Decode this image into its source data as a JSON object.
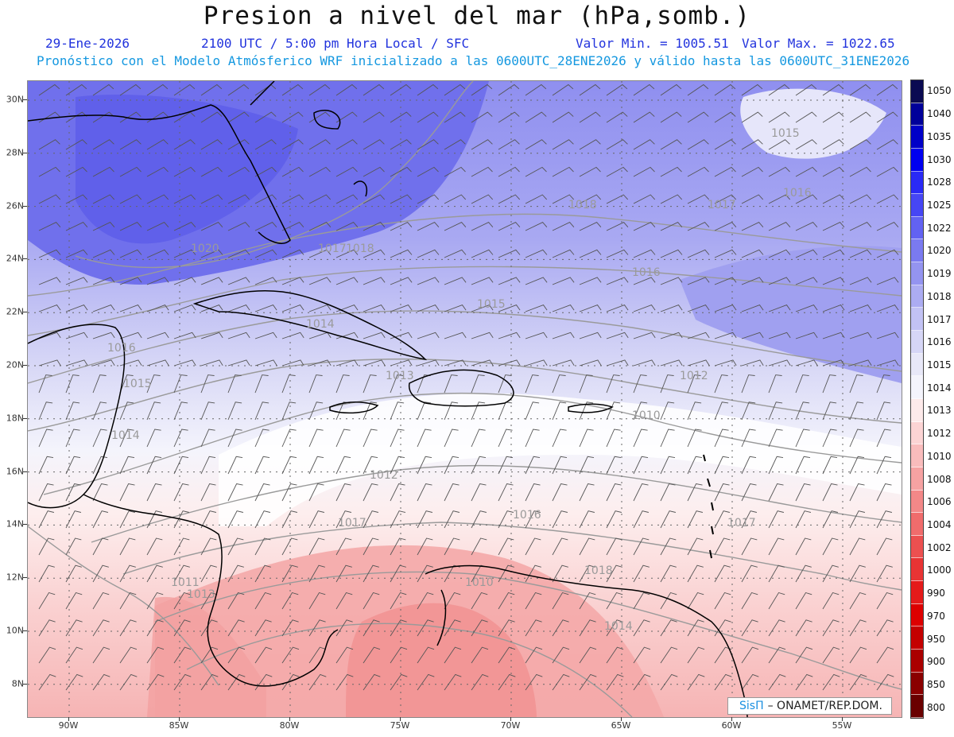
{
  "header": {
    "title": "Presion a nivel del mar (hPa,somb.)",
    "date": "29-Ene-2026",
    "time": "2100 UTC / 5:00 pm Hora Local / SFC",
    "min_value": "Valor Min. = 1005.51",
    "max_value": "Valor Max. = 1022.65",
    "model_line": "Pronóstico con el Modelo Atmósferico WRF inicializado a las 0600UTC_28ENE2026 y válido hasta las  0600UTC_31ENE2026"
  },
  "colors": {
    "title": "#111111",
    "info_blue": "#2233dd",
    "info_cyan": "#1598e0",
    "brand": "#1a8fe0",
    "isobar": "#9a9a9a",
    "coast": "#000000"
  },
  "colorbar": {
    "labels": [
      "1050",
      "1040",
      "1035",
      "1030",
      "1028",
      "1025",
      "1022",
      "1020",
      "1019",
      "1018",
      "1017",
      "1016",
      "1015",
      "1014",
      "1013",
      "1012",
      "1010",
      "1008",
      "1006",
      "1004",
      "1002",
      "1000",
      "990",
      "970",
      "950",
      "900",
      "850",
      "800"
    ],
    "colors": [
      "#0a0a52",
      "#00009a",
      "#0000c8",
      "#0000f0",
      "#2a2af6",
      "#4646f4",
      "#6262f2",
      "#7a7af0",
      "#9494f0",
      "#acacf2",
      "#c2c2f4",
      "#d6d6f6",
      "#e8e8f8",
      "#f4f4fc",
      "#fdeaea",
      "#fcd4d4",
      "#f9bcbc",
      "#f6a2a2",
      "#f38888",
      "#f06c6c",
      "#ec5050",
      "#e83434",
      "#e41a1a",
      "#dd0000",
      "#c40000",
      "#aa0000",
      "#8a0000",
      "#6a0000"
    ]
  },
  "latitude_labels": [
    "30N",
    "28N",
    "26N",
    "24N",
    "22N",
    "20N",
    "18N",
    "16N",
    "14N",
    "12N",
    "10N",
    "8N"
  ],
  "longitude_labels": [
    "90W",
    "85W",
    "80W",
    "75W",
    "70W",
    "65W",
    "60W",
    "55W"
  ],
  "isobar_labels": [
    "1015",
    "1016",
    "1017",
    "1018",
    "1020",
    "1018",
    "1017",
    "1016",
    "1015",
    "1014",
    "1013",
    "1012",
    "1011",
    "1010",
    "1016",
    "1015",
    "1014",
    "1013",
    "1012",
    "1010",
    "1017",
    "1018",
    "1016",
    "1017",
    "1014"
  ],
  "credit": {
    "brand": "SisΠ",
    "suffix": "– ONAMET/REP.DOM."
  }
}
